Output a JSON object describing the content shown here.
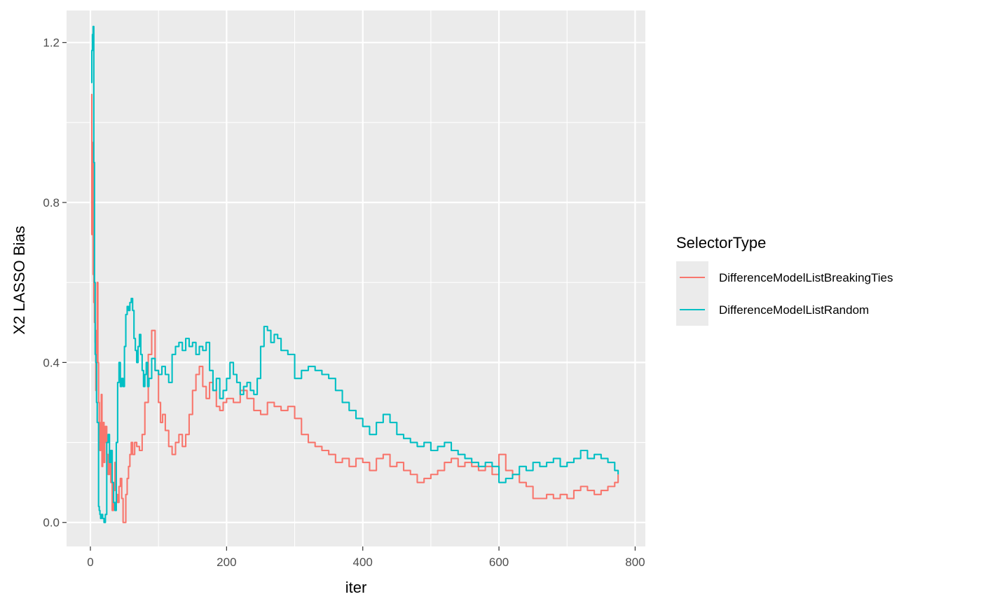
{
  "chart_data": {
    "type": "line",
    "title": "",
    "xlabel": "iter",
    "ylabel": "X2 LASSO Bias",
    "xlim": [
      -35,
      815
    ],
    "ylim": [
      -0.06,
      1.28
    ],
    "x_ticks": [
      0,
      200,
      400,
      600,
      800
    ],
    "x_tick_labels": [
      "0",
      "200",
      "400",
      "600",
      "800"
    ],
    "y_ticks": [
      0.0,
      0.4,
      0.8,
      1.2
    ],
    "y_tick_labels": [
      "0.0",
      "0.4",
      "0.8",
      "1.2"
    ],
    "grid": true,
    "legend": {
      "title": "SelectorType",
      "position": "right"
    },
    "series": [
      {
        "name": "DifferenceModelListBreakingTies",
        "color": "#F8766D",
        "x": [
          1,
          2,
          3,
          4,
          5,
          6,
          7,
          8,
          9,
          10,
          11,
          12,
          13,
          14,
          15,
          16,
          17,
          18,
          19,
          20,
          21,
          22,
          24,
          26,
          28,
          30,
          32,
          34,
          36,
          38,
          40,
          42,
          44,
          46,
          48,
          50,
          52,
          54,
          56,
          58,
          60,
          62,
          65,
          68,
          72,
          76,
          80,
          85,
          90,
          95,
          100,
          103,
          106,
          110,
          115,
          120,
          125,
          130,
          135,
          140,
          145,
          150,
          155,
          160,
          165,
          170,
          175,
          180,
          185,
          190,
          195,
          200,
          210,
          220,
          230,
          240,
          250,
          260,
          270,
          280,
          290,
          300,
          310,
          320,
          330,
          340,
          350,
          360,
          370,
          380,
          390,
          400,
          410,
          420,
          430,
          440,
          450,
          460,
          470,
          480,
          490,
          500,
          510,
          520,
          530,
          540,
          550,
          560,
          570,
          580,
          590,
          600,
          610,
          620,
          630,
          640,
          650,
          660,
          670,
          680,
          690,
          700,
          710,
          720,
          730,
          740,
          750,
          760,
          770,
          775
        ],
        "y": [
          1.07,
          0.72,
          0.95,
          0.62,
          0.55,
          0.5,
          0.45,
          0.33,
          0.48,
          0.6,
          0.4,
          0.3,
          0.22,
          0.18,
          0.25,
          0.32,
          0.14,
          0.17,
          0.25,
          0.15,
          0.2,
          0.24,
          0.17,
          0.12,
          0.18,
          0.1,
          0.03,
          0.08,
          0.15,
          0.07,
          0.05,
          0.09,
          0.11,
          0.06,
          0.0,
          0.0,
          0.07,
          0.11,
          0.14,
          0.17,
          0.2,
          0.17,
          0.2,
          0.19,
          0.18,
          0.22,
          0.3,
          0.42,
          0.48,
          0.38,
          0.3,
          0.25,
          0.27,
          0.23,
          0.19,
          0.17,
          0.2,
          0.22,
          0.19,
          0.22,
          0.27,
          0.33,
          0.37,
          0.39,
          0.34,
          0.31,
          0.35,
          0.33,
          0.29,
          0.28,
          0.3,
          0.31,
          0.3,
          0.33,
          0.31,
          0.28,
          0.27,
          0.3,
          0.29,
          0.28,
          0.29,
          0.26,
          0.22,
          0.2,
          0.19,
          0.18,
          0.17,
          0.15,
          0.16,
          0.14,
          0.16,
          0.15,
          0.13,
          0.16,
          0.17,
          0.14,
          0.15,
          0.13,
          0.12,
          0.1,
          0.11,
          0.12,
          0.13,
          0.15,
          0.16,
          0.14,
          0.15,
          0.14,
          0.13,
          0.14,
          0.12,
          0.17,
          0.13,
          0.12,
          0.1,
          0.09,
          0.06,
          0.06,
          0.07,
          0.06,
          0.07,
          0.06,
          0.08,
          0.09,
          0.08,
          0.07,
          0.08,
          0.09,
          0.1,
          0.12
        ],
        "step": true
      },
      {
        "name": "DifferenceModelListRandom",
        "color": "#00BFC4",
        "x": [
          1,
          2,
          3,
          4,
          5,
          6,
          7,
          8,
          9,
          10,
          11,
          12,
          13,
          14,
          15,
          16,
          18,
          20,
          22,
          24,
          26,
          28,
          30,
          32,
          34,
          36,
          38,
          40,
          42,
          44,
          46,
          48,
          50,
          52,
          54,
          56,
          58,
          60,
          62,
          64,
          66,
          68,
          70,
          72,
          74,
          76,
          78,
          80,
          82,
          84,
          86,
          90,
          95,
          100,
          105,
          110,
          115,
          120,
          125,
          130,
          135,
          140,
          145,
          150,
          155,
          160,
          165,
          170,
          175,
          180,
          185,
          190,
          195,
          200,
          205,
          210,
          215,
          220,
          225,
          230,
          235,
          240,
          245,
          250,
          255,
          260,
          265,
          270,
          275,
          280,
          290,
          300,
          310,
          320,
          330,
          340,
          350,
          360,
          370,
          380,
          390,
          400,
          410,
          420,
          430,
          440,
          450,
          460,
          470,
          480,
          490,
          500,
          510,
          520,
          530,
          540,
          550,
          560,
          570,
          580,
          590,
          600,
          610,
          620,
          630,
          640,
          650,
          660,
          670,
          680,
          690,
          700,
          710,
          720,
          730,
          740,
          750,
          760,
          770,
          775
        ],
        "y": [
          1.1,
          1.18,
          1.22,
          1.24,
          0.9,
          0.6,
          0.42,
          0.4,
          0.3,
          0.25,
          0.25,
          0.04,
          0.03,
          0.02,
          0.01,
          0.02,
          0.01,
          0.0,
          0.02,
          0.2,
          0.22,
          0.15,
          0.18,
          0.1,
          0.05,
          0.03,
          0.2,
          0.35,
          0.4,
          0.34,
          0.36,
          0.34,
          0.44,
          0.52,
          0.54,
          0.53,
          0.55,
          0.56,
          0.53,
          0.46,
          0.43,
          0.4,
          0.44,
          0.47,
          0.42,
          0.38,
          0.34,
          0.37,
          0.4,
          0.34,
          0.36,
          0.41,
          0.38,
          0.37,
          0.39,
          0.37,
          0.35,
          0.42,
          0.44,
          0.45,
          0.43,
          0.46,
          0.44,
          0.45,
          0.42,
          0.44,
          0.43,
          0.45,
          0.38,
          0.33,
          0.36,
          0.31,
          0.33,
          0.36,
          0.4,
          0.37,
          0.35,
          0.32,
          0.34,
          0.35,
          0.33,
          0.32,
          0.36,
          0.44,
          0.49,
          0.48,
          0.45,
          0.47,
          0.46,
          0.43,
          0.42,
          0.36,
          0.38,
          0.39,
          0.38,
          0.37,
          0.36,
          0.33,
          0.3,
          0.28,
          0.26,
          0.24,
          0.22,
          0.25,
          0.27,
          0.25,
          0.22,
          0.21,
          0.2,
          0.19,
          0.2,
          0.18,
          0.19,
          0.2,
          0.18,
          0.17,
          0.16,
          0.15,
          0.14,
          0.15,
          0.14,
          0.1,
          0.11,
          0.12,
          0.14,
          0.13,
          0.15,
          0.14,
          0.15,
          0.16,
          0.14,
          0.15,
          0.16,
          0.18,
          0.16,
          0.17,
          0.16,
          0.15,
          0.13,
          0.12
        ],
        "step": true
      }
    ]
  }
}
